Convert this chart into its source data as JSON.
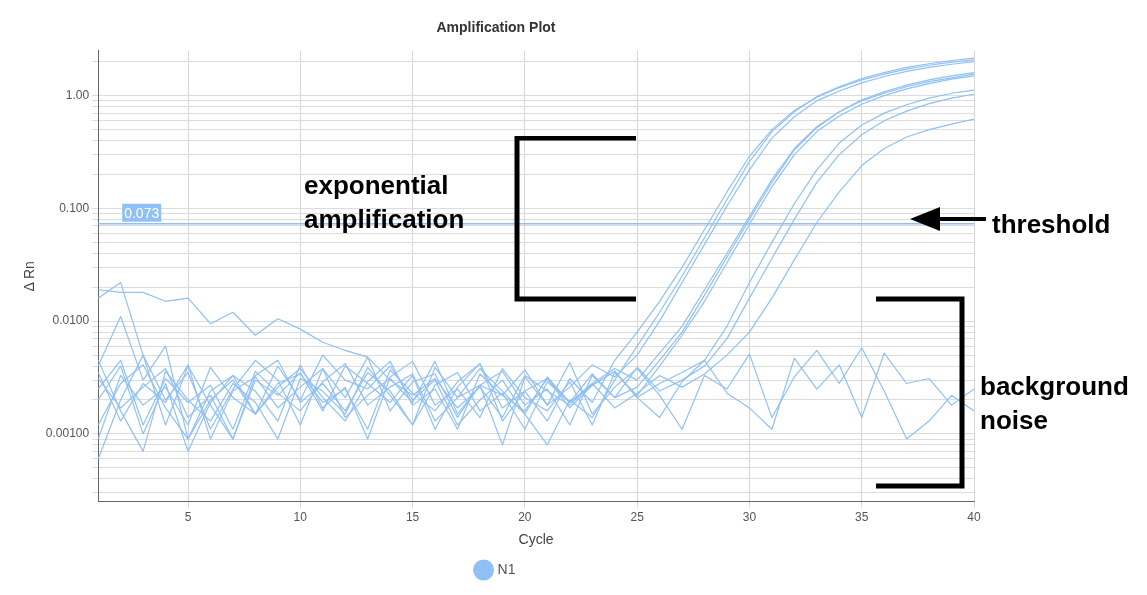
{
  "chart_data": {
    "type": "line",
    "title": "Amplification Plot",
    "xlabel": "Cycle",
    "ylabel": "Δ Rn",
    "log": "y",
    "grid": true,
    "legend": "bottom",
    "marker": "none",
    "line_style": "solid",
    "x": [
      1,
      2,
      3,
      4,
      5,
      6,
      7,
      8,
      9,
      10,
      11,
      12,
      13,
      14,
      15,
      16,
      17,
      18,
      19,
      20,
      21,
      22,
      23,
      24,
      25,
      26,
      27,
      28,
      29,
      30,
      31,
      32,
      33,
      34,
      35,
      36,
      37,
      38,
      39,
      40
    ],
    "xlim": [
      1,
      40
    ],
    "xticks": [
      5,
      10,
      15,
      20,
      25,
      30,
      35,
      40
    ],
    "ylim": [
      0.00025,
      2.5
    ],
    "yticks": [
      {
        "value": 0.0003,
        "label": null
      },
      {
        "value": 0.0004,
        "label": null
      },
      {
        "value": 0.0005,
        "label": null
      },
      {
        "value": 0.0006,
        "label": null
      },
      {
        "value": 0.0007,
        "label": null
      },
      {
        "value": 0.0008,
        "label": null
      },
      {
        "value": 0.0009,
        "label": null
      },
      {
        "value": 0.001,
        "label": "0.00100"
      },
      {
        "value": 0.002,
        "label": null
      },
      {
        "value": 0.003,
        "label": null
      },
      {
        "value": 0.004,
        "label": null
      },
      {
        "value": 0.005,
        "label": null
      },
      {
        "value": 0.006,
        "label": null
      },
      {
        "value": 0.007,
        "label": null
      },
      {
        "value": 0.008,
        "label": null
      },
      {
        "value": 0.009,
        "label": null
      },
      {
        "value": 0.01,
        "label": "0.0100"
      },
      {
        "value": 0.02,
        "label": null
      },
      {
        "value": 0.03,
        "label": null
      },
      {
        "value": 0.04,
        "label": null
      },
      {
        "value": 0.05,
        "label": null
      },
      {
        "value": 0.06,
        "label": null
      },
      {
        "value": 0.07,
        "label": null
      },
      {
        "value": 0.08,
        "label": null
      },
      {
        "value": 0.09,
        "label": null
      },
      {
        "value": 0.1,
        "label": "0.100"
      },
      {
        "value": 0.2,
        "label": null
      },
      {
        "value": 0.3,
        "label": null
      },
      {
        "value": 0.4,
        "label": null
      },
      {
        "value": 0.5,
        "label": null
      },
      {
        "value": 0.6,
        "label": null
      },
      {
        "value": 0.7,
        "label": null
      },
      {
        "value": 0.8,
        "label": null
      },
      {
        "value": 0.9,
        "label": null
      },
      {
        "value": 1,
        "label": "1.00"
      },
      {
        "value": 2,
        "label": null
      }
    ],
    "ref_lines": [
      {
        "axis": "y",
        "value": 0.073,
        "label": "0.073",
        "color": "#90c0f5"
      }
    ],
    "annotations": [
      "exponential amplification",
      "threshold",
      "background noise"
    ],
    "series": [
      {
        "name": "N1",
        "color": "#90c0f5",
        "values": [
          0.004,
          0.011,
          0.003,
          0.006,
          0.0009,
          0.002,
          0.003,
          0.0015,
          0.004,
          0.002,
          0.005,
          0.003,
          0.0025,
          0.004,
          0.002,
          0.003,
          0.0012,
          0.002,
          0.003,
          0.0015,
          0.0008,
          0.002,
          0.0014,
          0.003,
          0.006,
          0.012,
          0.025,
          0.055,
          0.12,
          0.26,
          0.48,
          0.72,
          0.98,
          1.2,
          1.42,
          1.6,
          1.78,
          1.92,
          2.05,
          2.15
        ]
      },
      {
        "color": "#90c0f5",
        "values": [
          0.0006,
          0.002,
          0.005,
          0.0012,
          0.004,
          0.0018,
          0.0009,
          0.003,
          0.0022,
          0.0035,
          0.0016,
          0.004,
          0.0028,
          0.0019,
          0.0033,
          0.0011,
          0.0026,
          0.0042,
          0.0017,
          0.0024,
          0.0013,
          0.0031,
          0.0019,
          0.0045,
          0.008,
          0.015,
          0.03,
          0.065,
          0.14,
          0.29,
          0.5,
          0.74,
          0.97,
          1.18,
          1.38,
          1.55,
          1.72,
          1.86,
          1.98,
          2.08
        ]
      },
      {
        "color": "#90c0f5",
        "values": [
          0.016,
          0.022,
          0.005,
          0.002,
          0.0035,
          0.0011,
          0.0025,
          0.0045,
          0.003,
          0.0012,
          0.0038,
          0.0021,
          0.0048,
          0.0016,
          0.0029,
          0.0034,
          0.0014,
          0.0027,
          0.0022,
          0.0037,
          0.0018,
          0.0026,
          0.0041,
          0.0032,
          0.005,
          0.01,
          0.022,
          0.048,
          0.105,
          0.22,
          0.42,
          0.65,
          0.9,
          1.1,
          1.3,
          1.48,
          1.64,
          1.78,
          1.9,
          2.0
        ]
      },
      {
        "color": "#90c0f5",
        "values": [
          0.0045,
          0.0016,
          0.0007,
          0.0036,
          0.002,
          0.0013,
          0.0028,
          0.0019,
          0.0009,
          0.0031,
          0.0024,
          0.0015,
          0.0039,
          0.0022,
          0.0012,
          0.0027,
          0.0035,
          0.0016,
          0.0023,
          0.0011,
          0.0029,
          0.0019,
          0.0034,
          0.0021,
          0.0026,
          0.0045,
          0.008,
          0.017,
          0.037,
          0.08,
          0.17,
          0.33,
          0.52,
          0.72,
          0.92,
          1.08,
          1.24,
          1.38,
          1.5,
          1.6
        ]
      },
      {
        "color": "#90c0f5",
        "values": [
          0.002,
          0.004,
          0.001,
          0.0028,
          0.0007,
          0.0019,
          0.0033,
          0.0024,
          0.0013,
          0.0041,
          0.0017,
          0.0026,
          0.0009,
          0.0032,
          0.0044,
          0.0018,
          0.0025,
          0.0014,
          0.0038,
          0.0021,
          0.0016,
          0.0029,
          0.0012,
          0.0035,
          0.0022,
          0.004,
          0.0075,
          0.015,
          0.033,
          0.072,
          0.155,
          0.3,
          0.48,
          0.66,
          0.84,
          1.0,
          1.15,
          1.28,
          1.4,
          1.5
        ]
      },
      {
        "color": "#90c0f5",
        "values": [
          0.019,
          0.018,
          0.018,
          0.015,
          0.016,
          0.0095,
          0.012,
          0.0075,
          0.0105,
          0.0085,
          0.0065,
          0.0055,
          0.0048,
          0.003,
          0.0022,
          0.0031,
          0.0017,
          0.0026,
          0.0014,
          0.0033,
          0.0024,
          0.0018,
          0.0028,
          0.0038,
          0.003,
          0.0052,
          0.009,
          0.019,
          0.04,
          0.085,
          0.18,
          0.34,
          0.53,
          0.72,
          0.9,
          1.05,
          1.2,
          1.33,
          1.44,
          1.55
        ]
      },
      {
        "color": "#90c0f5",
        "values": [
          0.0009,
          0.0033,
          0.0018,
          0.0026,
          0.0012,
          0.0039,
          0.0021,
          0.0015,
          0.0028,
          0.0034,
          0.0019,
          0.0025,
          0.0011,
          0.0037,
          0.0023,
          0.0016,
          0.0029,
          0.0042,
          0.0013,
          0.0024,
          0.0031,
          0.0017,
          0.0027,
          0.0036,
          0.0021,
          0.0028,
          0.0035,
          0.0045,
          0.009,
          0.022,
          0.05,
          0.11,
          0.22,
          0.38,
          0.55,
          0.7,
          0.83,
          0.95,
          1.05,
          1.12
        ]
      },
      {
        "color": "#90c0f5",
        "values": [
          0.0035,
          0.0013,
          0.0028,
          0.0019,
          0.0041,
          0.0009,
          0.0024,
          0.0032,
          0.0017,
          0.0026,
          0.0038,
          0.0014,
          0.0022,
          0.0031,
          0.0019,
          0.0044,
          0.0015,
          0.0027,
          0.0036,
          0.0018,
          0.0025,
          0.0012,
          0.0033,
          0.0021,
          0.0039,
          0.0024,
          0.003,
          0.004,
          0.007,
          0.016,
          0.036,
          0.08,
          0.17,
          0.3,
          0.45,
          0.6,
          0.73,
          0.85,
          0.95,
          1.03
        ]
      },
      {
        "color": "#90c0f5",
        "values": [
          0.0025,
          0.0045,
          0.0012,
          0.0031,
          0.0019,
          0.0027,
          0.0011,
          0.0036,
          0.0023,
          0.0016,
          0.0029,
          0.0042,
          0.0018,
          0.0026,
          0.0034,
          0.0013,
          0.0021,
          0.0038,
          0.0024,
          0.0015,
          0.0032,
          0.0019,
          0.0028,
          0.0017,
          0.0023,
          0.0033,
          0.0026,
          0.0034,
          0.005,
          0.008,
          0.016,
          0.035,
          0.075,
          0.14,
          0.24,
          0.34,
          0.43,
          0.5,
          0.56,
          0.62
        ]
      },
      {
        "color": "#90c0f5",
        "values": [
          0.0012,
          0.0028,
          0.0041,
          0.0017,
          0.0009,
          0.0024,
          0.0033,
          0.0015,
          0.0026,
          0.0038,
          0.0021,
          0.0013,
          0.0029,
          0.0044,
          0.0018,
          0.0025,
          0.0011,
          0.0034,
          0.0022,
          0.0016,
          0.0031,
          0.0019,
          0.0027,
          0.0036,
          0.0021,
          0.0014,
          0.0029,
          0.0045,
          0.0023,
          0.0017,
          0.0011,
          0.0047,
          0.0025,
          0.0041,
          0.0014,
          0.0052,
          0.0028,
          0.0031,
          0.0018,
          0.0025
        ]
      },
      {
        "color": "#90c0f5",
        "values": [
          0.0031,
          0.0017,
          0.0026,
          0.0038,
          0.0014,
          0.0022,
          0.0009,
          0.0033,
          0.0045,
          0.0019,
          0.0028,
          0.0016,
          0.0035,
          0.0024,
          0.0012,
          0.0039,
          0.0021,
          0.0027,
          0.0008,
          0.0032,
          0.0018,
          0.0043,
          0.0015,
          0.0026,
          0.0038,
          0.0022,
          0.0011,
          0.0033,
          0.0025,
          0.0051,
          0.0014,
          0.0032,
          0.0055,
          0.0028,
          0.0058,
          0.0024,
          0.0009,
          0.0013,
          0.0022,
          0.0016
        ]
      }
    ]
  }
}
